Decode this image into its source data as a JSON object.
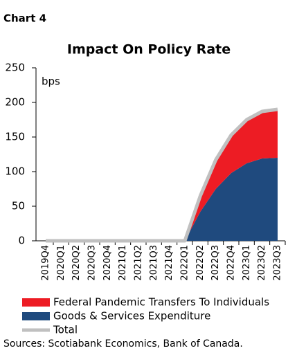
{
  "chart_data": {
    "type": "stacked-area",
    "label": "Chart 4",
    "title": "Impact On Policy Rate",
    "y_unit": "bps",
    "source": "Sources: Scotiabank Economics, Bank of Canada.",
    "categories": [
      "2019Q4",
      "2020Q1",
      "2020Q2",
      "2020Q3",
      "2020Q4",
      "2021Q1",
      "2021Q2",
      "2021Q3",
      "2021Q4",
      "2022Q1",
      "2022Q2",
      "2022Q3",
      "2022Q4",
      "2023Q1",
      "2023Q2",
      "2023Q3"
    ],
    "series": [
      {
        "name": "Federal Pandemic Transfers To Individuals",
        "color": "#ed1c24",
        "values": [
          0,
          0,
          0,
          0,
          0,
          0,
          0,
          0,
          0,
          0,
          23,
          42,
          55,
          63,
          68,
          70
        ]
      },
      {
        "name": "Goods & Services Expenditure",
        "color": "#1f4a7e",
        "values": [
          0,
          0,
          0,
          0,
          0,
          0,
          0,
          0,
          0,
          0,
          42,
          75,
          98,
          112,
          119,
          120
        ]
      },
      {
        "name": "Total",
        "color": "#c0c0c0",
        "values": [
          0,
          0,
          0,
          0,
          0,
          0,
          0,
          0,
          0,
          0,
          65,
          117,
          153,
          175,
          187,
          190
        ]
      }
    ],
    "ylim": [
      0,
      250
    ],
    "yticks": [
      0,
      50,
      100,
      150,
      200,
      250
    ]
  }
}
